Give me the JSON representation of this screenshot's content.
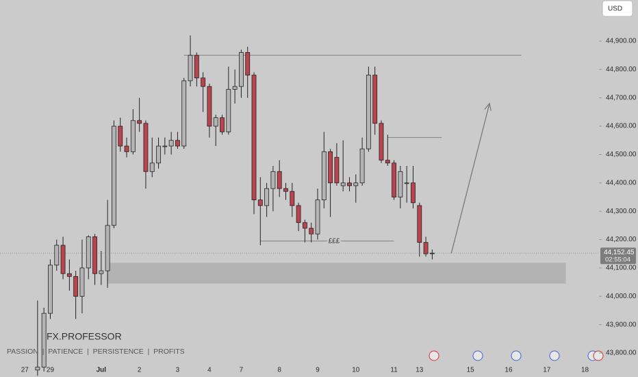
{
  "chart_data": {
    "type": "candlestick",
    "currency": "USD",
    "watermark": "FX.PROFESSOR",
    "tagline": "PASSION  |  PATIENCE  |  PERSISTENCE  |  PROFITS",
    "up_color": "#b4b4b4",
    "down_color": "#b9444d",
    "open": [
      43740,
      43750,
      43940,
      44110,
      44180,
      44080,
      44070,
      44000,
      44100,
      44210,
      44080,
      44090,
      44250,
      44600,
      44530,
      44510,
      44620,
      44610,
      44440,
      44470,
      44530,
      44530,
      44550,
      44530,
      44760,
      44850,
      44770,
      44740,
      44600,
      44630,
      44580,
      44730,
      44740,
      44860,
      44780,
      44340,
      44320,
      44380,
      44440,
      44380,
      44370,
      44320,
      44260,
      44240,
      44220,
      44340,
      44510,
      44490,
      44390,
      44400,
      44390,
      44400,
      44520,
      44780,
      44610,
      44480,
      44470,
      44350,
      44400,
      44400,
      44320,
      44190,
      44150
    ],
    "high": [
      43985,
      43960,
      44130,
      44200,
      44210,
      44130,
      44090,
      44200,
      44215,
      44220,
      44160,
      44340,
      44620,
      44630,
      44560,
      44660,
      44700,
      44620,
      44560,
      44560,
      44560,
      44580,
      44580,
      44770,
      44920,
      44860,
      44790,
      44750,
      44640,
      44640,
      44810,
      44800,
      44870,
      44880,
      44790,
      44420,
      44400,
      44460,
      44480,
      44400,
      44400,
      44330,
      44270,
      44260,
      44380,
      44580,
      44520,
      44540,
      44550,
      44420,
      44430,
      44560,
      44810,
      44810,
      44620,
      44570,
      44480,
      44460,
      44460,
      44460,
      44330,
      44210,
      44165
    ],
    "low": [
      43720,
      43735,
      43920,
      44090,
      44060,
      44020,
      43920,
      43940,
      44060,
      44040,
      44040,
      44030,
      44240,
      44510,
      44490,
      44500,
      44580,
      44380,
      44420,
      44450,
      44500,
      44500,
      44520,
      44520,
      44740,
      44740,
      44650,
      44560,
      44530,
      44570,
      44570,
      44680,
      44700,
      44700,
      44290,
      44180,
      44280,
      44300,
      44350,
      44340,
      44280,
      44230,
      44190,
      44190,
      44200,
      44310,
      44280,
      44390,
      44370,
      44370,
      44330,
      44390,
      44510,
      44570,
      44470,
      44460,
      44340,
      44310,
      44330,
      44310,
      44140,
      44140,
      44130
    ],
    "close": [
      43750,
      43940,
      44110,
      44180,
      44080,
      44070,
      44000,
      44100,
      44210,
      44080,
      44090,
      44250,
      44600,
      44530,
      44510,
      44620,
      44610,
      44440,
      44470,
      44530,
      44530,
      44550,
      44530,
      44760,
      44850,
      44770,
      44740,
      44600,
      44630,
      44580,
      44730,
      44740,
      44860,
      44780,
      44340,
      44320,
      44380,
      44440,
      44380,
      44370,
      44320,
      44260,
      44240,
      44220,
      44340,
      44510,
      44400,
      44400,
      44400,
      44390,
      44400,
      44520,
      44780,
      44610,
      44480,
      44470,
      44350,
      44440,
      44400,
      44330,
      44190,
      44150,
      44152.45
    ],
    "xlim": [
      -5.9,
      88.2
    ],
    "ylim": [
      43713,
      45045
    ],
    "xticks": [
      {
        "value": -2,
        "label": "27"
      },
      {
        "value": 2,
        "label": "29"
      },
      {
        "value": 10,
        "label": "Jul"
      },
      {
        "value": 16,
        "label": "2"
      },
      {
        "value": 22,
        "label": "3"
      },
      {
        "value": 27,
        "label": "4"
      },
      {
        "value": 32,
        "label": "7"
      },
      {
        "value": 38,
        "label": "8"
      },
      {
        "value": 44,
        "label": "9"
      },
      {
        "value": 50,
        "label": "10"
      },
      {
        "value": 56,
        "label": "11"
      },
      {
        "value": 60,
        "label": "13"
      },
      {
        "value": 68,
        "label": "15"
      },
      {
        "value": 74,
        "label": "16"
      },
      {
        "value": 80,
        "label": "17"
      },
      {
        "value": 86,
        "label": "18"
      }
    ],
    "yticks": [
      {
        "value": 43800,
        "label": "43,800.00"
      },
      {
        "value": 43900,
        "label": "43,900.00"
      },
      {
        "value": 44000,
        "label": "44,000.00"
      },
      {
        "value": 44100,
        "label": "44,100.00"
      },
      {
        "value": 44200,
        "label": "44,200.00"
      },
      {
        "value": 44300,
        "label": "44,300.00"
      },
      {
        "value": 44400,
        "label": "44,400.00"
      },
      {
        "value": 44500,
        "label": "44,500.00"
      },
      {
        "value": 44600,
        "label": "44,600.00"
      },
      {
        "value": 44700,
        "label": "44,700.00"
      },
      {
        "value": 44800,
        "label": "44,800.00"
      },
      {
        "value": 44900,
        "label": "44,900.00"
      }
    ],
    "last": {
      "value": 44152.45,
      "label": "44,152.45",
      "countdown": "02:55:04"
    },
    "hlines": [
      {
        "value": 44850,
        "x": [
          23,
          76
        ]
      },
      {
        "value": 44560,
        "x": [
          55,
          63.5
        ]
      },
      {
        "value": 44195,
        "x": [
          35,
          56
        ],
        "label": "£££"
      }
    ],
    "zone": {
      "values": [
        44045,
        44118
      ],
      "x": [
        10.9,
        83
      ]
    },
    "arrow": {
      "values": [
        44152,
        44680
      ],
      "x": [
        65,
        71
      ]
    }
  }
}
